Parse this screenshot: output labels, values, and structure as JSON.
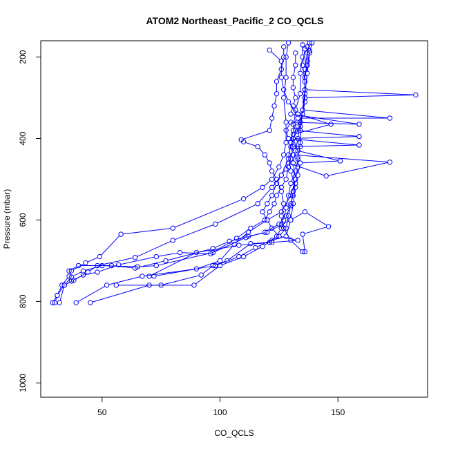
{
  "chart_data": {
    "type": "line",
    "title": "ATOM2 Northeast_Pacific_2 CO_QCLS",
    "xlabel": "CO_QCLS",
    "ylabel": "Pressure (mbar)",
    "xlim": [
      24,
      188
    ],
    "ylim": [
      1035,
      160
    ],
    "y_inverted": true,
    "xticks": [
      50,
      100,
      150
    ],
    "yticks": [
      200,
      400,
      600,
      800,
      1000
    ],
    "color": "#0000ff",
    "marker": "open-circle",
    "grid": false,
    "series": [
      {
        "points": [
          [
            30,
            803
          ],
          [
            31,
            785
          ],
          [
            33,
            760
          ],
          [
            36,
            738
          ],
          [
            37,
            725
          ],
          [
            43,
            705
          ],
          [
            49,
            690
          ],
          [
            58,
            635
          ],
          [
            80,
            620
          ],
          [
            110,
            548
          ],
          [
            118,
            520
          ],
          [
            122,
            500
          ],
          [
            125,
            470
          ],
          [
            127,
            440
          ],
          [
            128,
            410
          ],
          [
            128,
            360
          ],
          [
            127,
            300
          ],
          [
            128,
            250
          ],
          [
            128,
            200
          ],
          [
            129,
            165
          ]
        ]
      },
      {
        "points": [
          [
            32,
            803
          ],
          [
            34,
            760
          ],
          [
            38,
            748
          ],
          [
            44,
            728
          ],
          [
            48,
            712
          ],
          [
            64,
            692
          ],
          [
            80,
            650
          ],
          [
            98,
            610
          ],
          [
            116,
            560
          ],
          [
            122,
            520
          ],
          [
            126,
            490
          ],
          [
            129,
            450
          ],
          [
            130,
            410
          ],
          [
            131,
            380
          ],
          [
            132,
            330
          ],
          [
            134,
            290
          ],
          [
            134,
            240
          ],
          [
            135,
            200
          ],
          [
            135,
            170
          ]
        ]
      },
      {
        "points": [
          [
            39,
            803
          ],
          [
            52,
            760
          ],
          [
            67,
            738
          ],
          [
            90,
            720
          ],
          [
            100,
            700
          ],
          [
            106,
            660
          ],
          [
            112,
            630
          ],
          [
            120,
            600
          ],
          [
            126,
            580
          ],
          [
            130,
            540
          ],
          [
            132,
            500
          ],
          [
            131,
            460
          ],
          [
            132,
            430
          ],
          [
            133,
            400
          ],
          [
            134,
            360
          ],
          [
            135,
            330
          ],
          [
            136,
            280
          ],
          [
            136,
            230
          ],
          [
            137,
            190
          ],
          [
            138,
            165
          ]
        ]
      },
      {
        "points": [
          [
            45,
            803
          ],
          [
            70,
            760
          ],
          [
            89,
            760
          ],
          [
            100,
            712
          ],
          [
            110,
            690
          ],
          [
            118,
            665
          ],
          [
            122,
            650
          ],
          [
            128,
            640
          ],
          [
            130,
            600
          ],
          [
            131,
            560
          ],
          [
            132,
            520
          ],
          [
            130,
            480
          ],
          [
            129,
            440
          ],
          [
            131,
            400
          ],
          [
            133,
            370
          ],
          [
            135,
            340
          ],
          [
            136,
            310
          ],
          [
            136,
            260
          ],
          [
            135,
            220
          ],
          [
            136,
            180
          ]
        ]
      },
      {
        "points": [
          [
            29,
            803
          ],
          [
            31,
            785
          ],
          [
            34,
            760
          ],
          [
            37,
            740
          ],
          [
            42,
            725
          ],
          [
            50,
            712
          ],
          [
            65,
            715
          ],
          [
            73,
            712
          ],
          [
            97,
            680
          ],
          [
            111,
            643
          ],
          [
            119,
            630
          ],
          [
            125,
            610
          ],
          [
            128,
            590
          ],
          [
            130,
            565
          ],
          [
            131,
            530
          ],
          [
            132,
            500
          ],
          [
            133,
            470
          ],
          [
            133,
            445
          ],
          [
            134,
            420
          ],
          [
            134,
            380
          ],
          [
            135,
            340
          ],
          [
            136,
            300
          ],
          [
            136,
            250
          ],
          [
            137,
            210
          ],
          [
            137,
            175
          ]
        ]
      },
      {
        "points": [
          [
            56,
            760
          ],
          [
            75,
            760
          ],
          [
            92,
            735
          ],
          [
            97,
            712
          ],
          [
            103,
            700
          ],
          [
            113,
            658
          ],
          [
            121,
            655
          ],
          [
            124,
            640
          ],
          [
            126,
            620
          ],
          [
            127,
            600
          ],
          [
            128,
            570
          ],
          [
            129,
            540
          ],
          [
            130,
            510
          ],
          [
            132,
            480
          ],
          [
            133,
            450
          ],
          [
            134,
            410
          ],
          [
            134,
            370
          ],
          [
            135,
            330
          ],
          [
            136,
            290
          ],
          [
            137,
            240
          ],
          [
            138,
            190
          ],
          [
            139,
            165
          ]
        ]
      },
      {
        "points": [
          [
            72,
            738
          ],
          [
            98,
            712
          ],
          [
            108,
            690
          ],
          [
            115,
            668
          ],
          [
            125,
            640
          ],
          [
            128,
            620
          ],
          [
            129,
            590
          ],
          [
            130,
            560
          ],
          [
            131,
            540
          ],
          [
            132,
            510
          ],
          [
            133,
            490
          ],
          [
            134,
            460
          ],
          [
            151,
            455
          ],
          [
            133,
            430
          ],
          [
            131,
            400
          ],
          [
            159,
            395
          ],
          [
            132,
            380
          ],
          [
            131,
            365
          ],
          [
            133,
            350
          ],
          [
            172,
            350
          ],
          [
            135,
            330
          ],
          [
            136,
            300
          ],
          [
            183,
            293
          ],
          [
            136,
            280
          ],
          [
            136,
            250
          ],
          [
            137,
            220
          ],
          [
            138,
            185
          ]
        ]
      },
      {
        "points": [
          [
            70,
            738
          ],
          [
            90,
            680
          ],
          [
            108,
            662
          ],
          [
            122,
            655
          ],
          [
            133,
            650
          ],
          [
            125,
            640
          ],
          [
            122,
            620
          ],
          [
            120,
            600
          ],
          [
            118,
            580
          ],
          [
            120,
            560
          ],
          [
            122,
            540
          ],
          [
            124,
            510
          ],
          [
            126,
            490
          ],
          [
            128,
            475
          ],
          [
            129,
            460
          ],
          [
            145,
            492
          ],
          [
            172,
            458
          ],
          [
            131,
            440
          ],
          [
            130,
            420
          ],
          [
            159,
            416
          ],
          [
            129,
            400
          ],
          [
            128,
            380
          ],
          [
            130,
            360
          ],
          [
            159,
            365
          ],
          [
            130,
            340
          ],
          [
            131,
            320
          ],
          [
            132,
            300
          ],
          [
            131,
            275
          ],
          [
            131,
            250
          ],
          [
            132,
            220
          ],
          [
            132,
            190
          ]
        ]
      },
      {
        "points": [
          [
            36,
            725
          ],
          [
            40,
            712
          ],
          [
            54,
            712
          ],
          [
            64,
            718
          ],
          [
            77,
            700
          ],
          [
            97,
            670
          ],
          [
            104,
            652
          ],
          [
            112,
            640
          ],
          [
            120,
            630
          ],
          [
            126,
            612
          ],
          [
            130,
            600
          ],
          [
            136,
            580
          ],
          [
            146,
            616
          ],
          [
            135,
            635
          ],
          [
            136,
            678
          ],
          [
            135,
            678
          ],
          [
            130,
            650
          ],
          [
            127,
            620
          ],
          [
            126,
            590
          ],
          [
            127,
            560
          ],
          [
            126,
            530
          ],
          [
            124,
            500
          ],
          [
            122,
            480
          ],
          [
            121,
            460
          ],
          [
            119,
            440
          ],
          [
            116,
            420
          ],
          [
            110,
            408
          ],
          [
            109,
            403
          ],
          [
            121,
            380
          ],
          [
            122,
            350
          ],
          [
            123,
            320
          ],
          [
            124,
            290
          ],
          [
            124,
            260
          ],
          [
            126,
            230
          ],
          [
            127,
            200
          ],
          [
            127,
            175
          ]
        ]
      },
      {
        "points": [
          [
            37,
            750
          ],
          [
            42,
            735
          ],
          [
            48,
            728
          ],
          [
            57,
            710
          ],
          [
            73,
            690
          ],
          [
            83,
            680
          ],
          [
            96,
            683
          ],
          [
            107,
            645
          ],
          [
            113,
            620
          ],
          [
            119,
            600
          ],
          [
            121,
            580
          ],
          [
            123,
            560
          ],
          [
            124,
            540
          ],
          [
            126,
            520
          ],
          [
            128,
            500
          ],
          [
            129,
            470
          ],
          [
            130,
            450
          ],
          [
            131,
            420
          ],
          [
            131,
            390
          ],
          [
            147,
            365
          ],
          [
            133,
            340
          ],
          [
            129,
            310
          ],
          [
            127,
            280
          ],
          [
            126,
            250
          ],
          [
            126,
            210
          ],
          [
            121,
            183
          ]
        ]
      }
    ]
  }
}
